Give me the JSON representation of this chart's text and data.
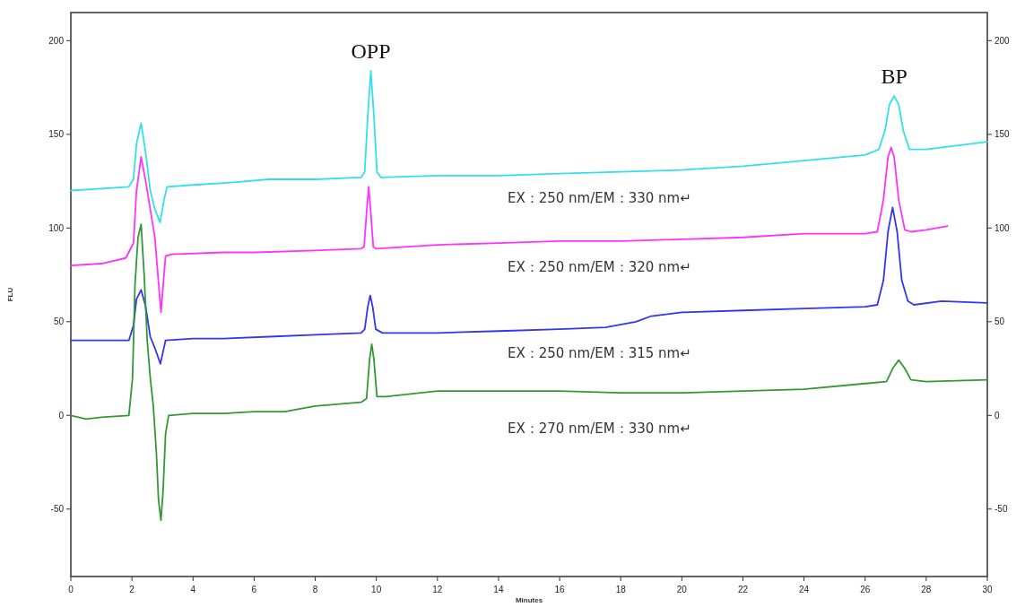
{
  "chart_data": {
    "type": "line",
    "xlabel": "Minutes",
    "ylabel": "FLU",
    "xlim": [
      0,
      30
    ],
    "ylim": [
      -86,
      215
    ],
    "xticks": [
      0,
      2,
      4,
      6,
      8,
      10,
      12,
      14,
      16,
      18,
      20,
      22,
      24,
      26,
      28,
      30
    ],
    "yticks": [
      -50,
      0,
      50,
      100,
      150,
      200
    ],
    "y2lim": [
      -86,
      215
    ],
    "y2ticks": [
      -50,
      0,
      50,
      100,
      150,
      200
    ],
    "annotations": [
      {
        "text": "OPP",
        "x": 9.82,
        "y": 184
      },
      {
        "text": "BP",
        "x": 26.95,
        "y": 170.5
      }
    ],
    "series": [
      {
        "name": "EX：250 nm/EM：330 nm↵",
        "color": "#33e0ea",
        "x": [
          0,
          1,
          1.9,
          2.05,
          2.15,
          2.3,
          2.45,
          2.6,
          2.75,
          2.92,
          3.05,
          3.15,
          4,
          5,
          6.5,
          8,
          9.5,
          9.62,
          9.72,
          9.82,
          9.92,
          10.02,
          10.15,
          12,
          14,
          16,
          18,
          20,
          22,
          24,
          26,
          26.45,
          26.65,
          26.8,
          26.95,
          27.1,
          27.25,
          27.45,
          28,
          29,
          30
        ],
        "values": [
          120,
          121,
          122,
          126,
          145,
          156,
          140,
          120,
          110,
          103,
          115,
          122,
          123,
          124,
          126,
          126,
          127,
          130,
          160,
          184,
          160,
          130,
          127,
          128,
          128,
          129,
          130,
          131,
          133,
          136,
          139,
          142,
          152,
          166,
          170.5,
          166,
          152,
          142,
          142,
          144,
          146
        ]
      },
      {
        "name": "EX：250 nm/EM：320 nm↵",
        "color": "#ff33ff",
        "x": [
          0,
          1,
          1.8,
          2.05,
          2.15,
          2.3,
          2.45,
          2.6,
          2.75,
          2.95,
          3.1,
          3.3,
          5,
          6,
          8,
          9.5,
          9.6,
          9.68,
          9.75,
          9.82,
          9.9,
          10.0,
          12,
          14,
          16,
          18,
          20,
          22,
          24,
          26,
          26.4,
          26.6,
          26.75,
          26.85,
          26.95,
          27.1,
          27.3,
          27.5,
          28,
          28.7
        ],
        "values": [
          80,
          81,
          84,
          92,
          120,
          138,
          125,
          110,
          95,
          55,
          85,
          86,
          87,
          87,
          88,
          89,
          90,
          108,
          122,
          108,
          90,
          89,
          91,
          92,
          93,
          93,
          94,
          95,
          97,
          97,
          98,
          115,
          138,
          143,
          138,
          115,
          99,
          98,
          99,
          101
        ]
      },
      {
        "name": "EX：250 nm/EM：315 nm↵",
        "color": "#3535ee",
        "x": [
          0,
          1,
          1.9,
          2.05,
          2.15,
          2.3,
          2.45,
          2.6,
          2.75,
          2.93,
          3.1,
          4,
          5,
          6.5,
          8,
          9.5,
          9.62,
          9.72,
          9.8,
          9.88,
          9.98,
          10.2,
          12,
          14,
          16,
          17.5,
          18.5,
          19,
          20,
          22,
          24,
          26,
          26.4,
          26.6,
          26.75,
          26.9,
          27.05,
          27.2,
          27.4,
          27.6,
          28.5,
          30
        ],
        "values": [
          40,
          40,
          40,
          48,
          62,
          67,
          58,
          42,
          36,
          27.5,
          40,
          41,
          41,
          42,
          43,
          44,
          46,
          58,
          64,
          58,
          46,
          44,
          44,
          45,
          46,
          47,
          50,
          53,
          55,
          56,
          57,
          58,
          59,
          72,
          98,
          111,
          98,
          72,
          61,
          59,
          61,
          60
        ]
      },
      {
        "name": "EX：270 nm/EM：330 nm↵",
        "color": "#339933",
        "x": [
          0,
          0.5,
          1,
          1.9,
          2.02,
          2.1,
          2.2,
          2.3,
          2.4,
          2.5,
          2.6,
          2.7,
          2.8,
          2.87,
          2.95,
          3.02,
          3.1,
          3.2,
          4,
          5,
          6,
          7,
          8,
          9.5,
          9.68,
          9.78,
          9.85,
          9.92,
          10.02,
          10.3,
          12,
          14,
          16,
          18,
          20,
          22,
          24,
          26,
          26.7,
          26.9,
          27.1,
          27.3,
          27.5,
          28,
          30
        ],
        "values": [
          0,
          -2,
          -1,
          0,
          20,
          70,
          95,
          102,
          75,
          40,
          20,
          5,
          -20,
          -45,
          -56,
          -40,
          -10,
          0,
          1,
          1,
          2,
          2,
          5,
          7,
          9,
          30,
          38,
          30,
          10,
          10,
          13,
          13,
          13,
          12,
          12,
          13,
          14,
          17,
          18,
          25,
          29.5,
          25,
          19,
          18,
          19
        ]
      }
    ]
  }
}
